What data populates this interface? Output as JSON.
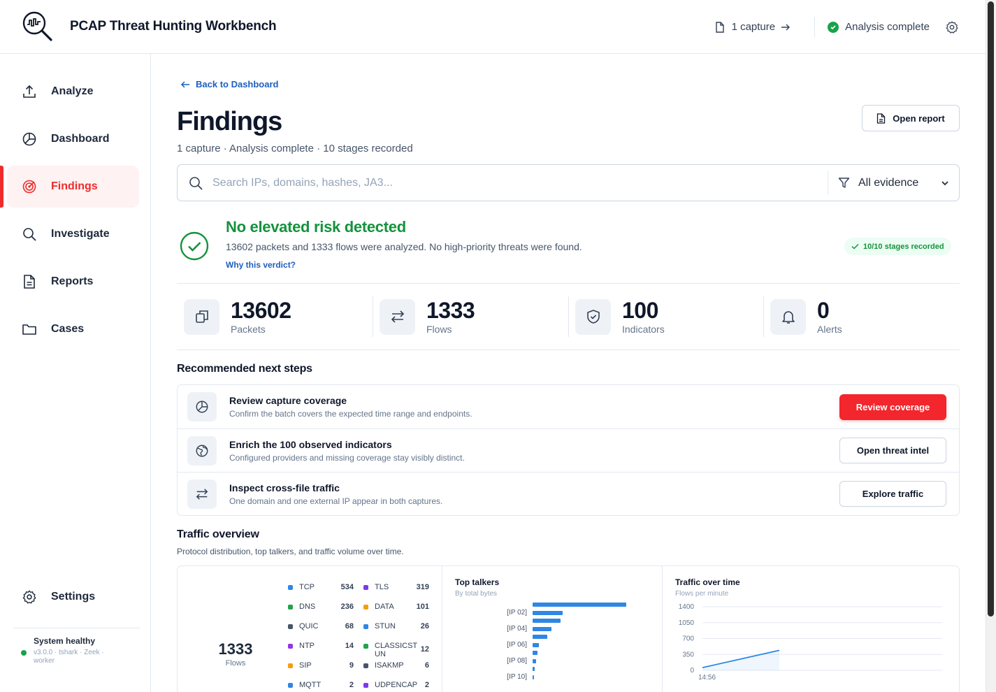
{
  "header": {
    "app_title": "PCAP Threat Hunting Workbench",
    "captures_link": "1 capture",
    "status": "Analysis complete"
  },
  "sidebar": {
    "items": [
      {
        "label": "Analyze",
        "icon": "upload-icon"
      },
      {
        "label": "Dashboard",
        "icon": "pie-chart-icon"
      },
      {
        "label": "Findings",
        "icon": "target-icon",
        "active": true
      },
      {
        "label": "Investigate",
        "icon": "search-icon"
      },
      {
        "label": "Reports",
        "icon": "document-icon"
      },
      {
        "label": "Cases",
        "icon": "folder-icon"
      }
    ],
    "settings_label": "Settings",
    "health": {
      "title": "System healthy",
      "details": "v3.0.0 · tshark · Zeek · worker"
    }
  },
  "page": {
    "back_link": "Back to Dashboard",
    "title": "Findings",
    "subtitle": "1 capture · Analysis complete · 10 stages recorded",
    "open_report": "Open report"
  },
  "search": {
    "placeholder": "Search IPs, domains, hashes, JA3...",
    "filter_value": "All evidence"
  },
  "verdict": {
    "title": "No elevated risk detected",
    "text": "13602 packets and 1333 flows were analyzed. No high-priority threats were found.",
    "link": "Why this verdict?",
    "badge": "10/10 stages recorded"
  },
  "stats": [
    {
      "value": "13602",
      "label": "Packets",
      "icon": "copy-icon"
    },
    {
      "value": "1333",
      "label": "Flows",
      "icon": "arrows-exchange-icon"
    },
    {
      "value": "100",
      "label": "Indicators",
      "icon": "shield-check-icon"
    },
    {
      "value": "0",
      "label": "Alerts",
      "icon": "bell-icon"
    }
  ],
  "next_steps": {
    "title": "Recommended next steps",
    "items": [
      {
        "title": "Review capture coverage",
        "desc": "Confirm the batch covers the expected time range and endpoints.",
        "button": "Review coverage",
        "icon": "pie-chart-icon"
      },
      {
        "title": "Enrich the 100 observed indicators",
        "desc": "Configured providers and missing coverage stay visibly distinct.",
        "button": "Open threat intel",
        "icon": "globe-icon"
      },
      {
        "title": "Inspect cross-file traffic",
        "desc": "One domain and one external IP appear in both captures.",
        "button": "Explore traffic",
        "icon": "arrows-exchange-icon"
      }
    ]
  },
  "traffic": {
    "title": "Traffic overview",
    "subtitle": "Protocol distribution, top talkers, and traffic volume over time.",
    "donut_value": "1333",
    "donut_label": "Flows",
    "protocols": [
      {
        "name": "TCP",
        "value": "534",
        "color": "#2f86e4"
      },
      {
        "name": "TLS",
        "value": "319",
        "color": "#7c3aed"
      },
      {
        "name": "DNS",
        "value": "236",
        "color": "#22a34a"
      },
      {
        "name": "DATA",
        "value": "101",
        "color": "#f59e0b"
      },
      {
        "name": "QUIC",
        "value": "68",
        "color": "#475569"
      },
      {
        "name": "STUN",
        "value": "26",
        "color": "#2f86e4"
      },
      {
        "name": "NTP",
        "value": "14",
        "color": "#9333ea"
      },
      {
        "name": "CLASSICSTUN",
        "value": "12",
        "color": "#22a34a"
      },
      {
        "name": "SIP",
        "value": "9",
        "color": "#f59e0b"
      },
      {
        "name": "ISAKMP",
        "value": "6",
        "color": "#475569"
      },
      {
        "name": "MQTT",
        "value": "2",
        "color": "#2f86e4"
      },
      {
        "name": "UDPENCAP",
        "value": "2",
        "color": "#7c3aed"
      }
    ],
    "top_talkers": {
      "title": "Top talkers",
      "subtitle": "By total bytes",
      "labels": [
        "[IP 02]",
        "[IP 04]",
        "[IP 06]",
        "[IP 08]",
        "[IP 10]"
      ],
      "relative_values": [
        1.0,
        0.32,
        0.3,
        0.2,
        0.16,
        0.07,
        0.05,
        0.035,
        0.025,
        0.015
      ]
    },
    "over_time": {
      "title": "Traffic over time",
      "subtitle": "Flows per minute",
      "y_ticks": [
        "1400",
        "1050",
        "700",
        "350",
        "0"
      ],
      "x_label": "14:56"
    }
  },
  "chart_data": {
    "type": "line",
    "title": "Traffic over time",
    "subtitle": "Flows per minute",
    "x": [
      "14:56",
      "",
      ""
    ],
    "series": [
      {
        "values": [
          60,
          250,
          440
        ]
      }
    ],
    "ylim": [
      0,
      1400
    ],
    "grid": true
  }
}
